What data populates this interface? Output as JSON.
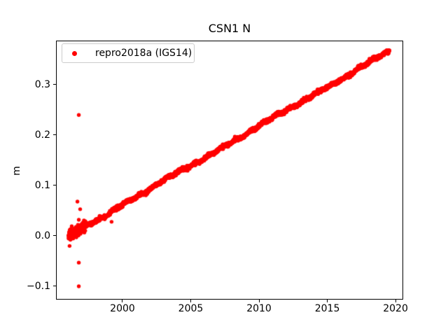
{
  "chart_data": {
    "type": "scatter",
    "title": "CSN1 N",
    "xlabel": "",
    "ylabel": "m",
    "xlim": [
      1995.13,
      2020.56
    ],
    "ylim": [
      -0.1264,
      0.3875
    ],
    "grid": false,
    "xticks": {
      "values": [
        2000,
        2005,
        2010,
        2015,
        2020
      ],
      "labels": [
        "2000",
        "2005",
        "2010",
        "2015",
        "2020"
      ]
    },
    "yticks": {
      "values": [
        -0.1,
        0.0,
        0.1,
        0.2,
        0.3
      ],
      "labels": [
        "−0.1",
        "0.0",
        "0.1",
        "0.2",
        "0.3"
      ]
    },
    "legend": {
      "position": "upper left"
    },
    "series": [
      {
        "name": "repro2018a (IGS14)",
        "color": "#ff0000",
        "marker": "dot",
        "marker_radius_px": 2.7,
        "trend": {
          "start_year": 1996.05,
          "end_year": 2019.55,
          "start_value": 0.0,
          "end_value": 0.367,
          "rate_m_per_yr": 0.0156
        },
        "noise_std_m": 0.0019,
        "wiggle_m": [
          0.0016,
          0.0014,
          0.0012
        ],
        "samples_per_year": 110,
        "start_cluster": {
          "year_range": [
            1996.05,
            1997.3
          ],
          "extra_points": 150,
          "noise_std_m": 0.006
        },
        "outliers": [
          [
            1996.8,
            0.24
          ],
          [
            1996.7,
            0.068
          ],
          [
            1996.9,
            0.053
          ],
          [
            1996.8,
            0.032
          ],
          [
            1999.2,
            0.028
          ],
          [
            1996.8,
            -0.053
          ],
          [
            1996.8,
            -0.1
          ]
        ]
      }
    ]
  }
}
